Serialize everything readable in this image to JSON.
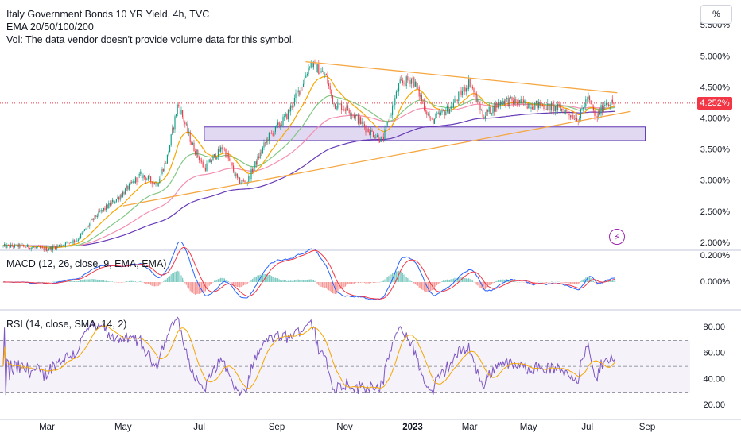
{
  "header": {
    "title": "Italy Government Bonds 10 YR Yield, 4h, TVC",
    "ema": "EMA 20/50/100/200",
    "vol": "Vol: The data vendor doesn't provide volume data for this symbol.",
    "unit_button": "%",
    "last_price": "4.252%"
  },
  "panes": {
    "macd_label": "MACD (12, 26, close, 9, EMA, EMA)",
    "rsi_label": "RSI (14, close, SMA, 14, 2)"
  },
  "colors": {
    "candle_up": "#089981",
    "candle_down": "#f23645",
    "ema20": "#f7a600",
    "ema50": "#81c784",
    "ema100": "#f48fb1",
    "ema200": "#673ab7",
    "trendline": "#f5a742",
    "zone": "#9575cd",
    "rsi": "#7e57c2",
    "rsi_ma": "#f7a600",
    "macd": "#2962ff",
    "signal": "#f23645"
  },
  "chart_data": [
    {
      "type": "candlestick",
      "title": "Italy Government Bonds 10 YR Yield, 4h, TVC",
      "y_axis_ticks": [
        "5.500%",
        "5.000%",
        "4.500%",
        "4.000%",
        "3.500%",
        "3.000%",
        "2.500%",
        "2.000%"
      ],
      "ylim": [
        2.0,
        5.5
      ],
      "x_axis_ticks": [
        "Mar",
        "May",
        "Jul",
        "Sep",
        "Nov",
        "2023",
        "Mar",
        "May",
        "Jul",
        "Sep"
      ],
      "last_value": 4.252,
      "series_path": [
        {
          "x": "2022-02-10",
          "y": 1.95
        },
        {
          "x": "2022-03-01",
          "y": 1.9
        },
        {
          "x": "2022-03-25",
          "y": 2.05
        },
        {
          "x": "2022-04-10",
          "y": 2.45
        },
        {
          "x": "2022-04-28",
          "y": 2.75
        },
        {
          "x": "2022-05-15",
          "y": 3.1
        },
        {
          "x": "2022-05-28",
          "y": 2.95
        },
        {
          "x": "2022-06-05",
          "y": 3.35
        },
        {
          "x": "2022-06-14",
          "y": 4.25
        },
        {
          "x": "2022-06-25",
          "y": 3.6
        },
        {
          "x": "2022-07-05",
          "y": 3.2
        },
        {
          "x": "2022-07-20",
          "y": 3.55
        },
        {
          "x": "2022-08-01",
          "y": 3.0
        },
        {
          "x": "2022-08-08",
          "y": 2.98
        },
        {
          "x": "2022-08-25",
          "y": 3.7
        },
        {
          "x": "2022-09-10",
          "y": 4.05
        },
        {
          "x": "2022-09-25",
          "y": 4.6
        },
        {
          "x": "2022-10-01",
          "y": 4.9
        },
        {
          "x": "2022-10-15",
          "y": 4.7
        },
        {
          "x": "2022-10-22",
          "y": 4.25
        },
        {
          "x": "2022-11-05",
          "y": 4.15
        },
        {
          "x": "2022-11-20",
          "y": 3.85
        },
        {
          "x": "2022-12-05",
          "y": 3.65
        },
        {
          "x": "2022-12-20",
          "y": 4.55
        },
        {
          "x": "2023-01-01",
          "y": 4.65
        },
        {
          "x": "2023-01-20",
          "y": 3.95
        },
        {
          "x": "2023-02-10",
          "y": 4.2
        },
        {
          "x": "2023-03-01",
          "y": 4.6
        },
        {
          "x": "2023-03-15",
          "y": 4.05
        },
        {
          "x": "2023-04-05",
          "y": 4.3
        },
        {
          "x": "2023-04-25",
          "y": 4.25
        },
        {
          "x": "2023-05-20",
          "y": 4.2
        },
        {
          "x": "2023-06-05",
          "y": 4.15
        },
        {
          "x": "2023-06-22",
          "y": 4.0
        },
        {
          "x": "2023-07-01",
          "y": 4.35
        },
        {
          "x": "2023-07-10",
          "y": 4.0
        },
        {
          "x": "2023-07-20",
          "y": 4.28
        },
        {
          "x": "2023-07-28",
          "y": 4.25
        }
      ],
      "trendlines": [
        {
          "from": {
            "x": "2022-09-27",
            "y": 4.92
          },
          "to": {
            "x": "2023-08-01",
            "y": 4.42
          }
        },
        {
          "from": {
            "x": "2022-05-01",
            "y": 2.6
          },
          "to": {
            "x": "2023-08-15",
            "y": 4.12
          }
        }
      ],
      "zone": {
        "from_x": "2022-07-05",
        "to_x": "2023-08-30",
        "y_low": 3.65,
        "y_high": 3.87
      }
    },
    {
      "type": "line",
      "title": "MACD (12, 26, close, 9, EMA, EMA)",
      "y_axis_ticks": [
        "0.200%",
        "0.000%"
      ]
    },
    {
      "type": "line",
      "title": "RSI (14, close, SMA, 14, 2)",
      "y_axis_ticks": [
        "80.00",
        "60.00",
        "40.00",
        "20.00"
      ],
      "ylim": [
        20,
        85
      ],
      "bands": [
        70,
        50,
        30
      ]
    }
  ]
}
